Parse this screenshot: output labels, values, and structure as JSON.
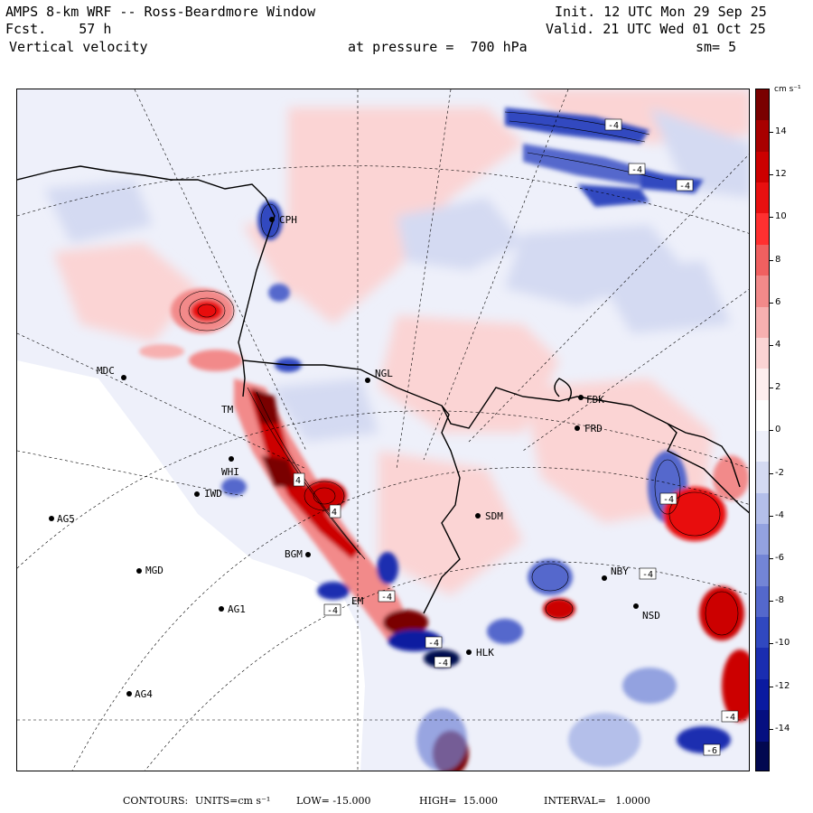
{
  "header": {
    "line1_left": "AMPS 8-km WRF -- Ross-Beardmore Window",
    "line2_left": "Fcst.    57 h",
    "line3_left": "Vertical velocity",
    "line1_right": "Init. 12 UTC Mon 29 Sep 25",
    "line2_right": "Valid. 21 UTC Wed 01 Oct 25",
    "pressure": "at pressure =  700 hPa",
    "smoothing": "sm= 5"
  },
  "colorbar": {
    "unit": "cm s⁻¹",
    "ticks": [
      "14",
      "12",
      "10",
      "8",
      "6",
      "4",
      "2",
      "0",
      "-2",
      "-4",
      "-6",
      "-8",
      "-10",
      "-12",
      "-14"
    ],
    "palette": [
      "#7a0000",
      "#a80000",
      "#cc0000",
      "#e81010",
      "#ff3030",
      "#f06060",
      "#f28a8a",
      "#f7b0b0",
      "#fbd4d4",
      "#fdeeee",
      "#ffffff",
      "#eef0fa",
      "#d4daf2",
      "#b4bfea",
      "#93a2e0",
      "#7385d6",
      "#5468cc",
      "#3048c0",
      "#1a2db0",
      "#0a1aa0",
      "#050f80",
      "#020850"
    ]
  },
  "stations": [
    {
      "id": "CPH"
    },
    {
      "id": "MDC"
    },
    {
      "id": "NGL"
    },
    {
      "id": "FDK"
    },
    {
      "id": "FRD"
    },
    {
      "id": "IWD"
    },
    {
      "id": "WHI"
    },
    {
      "id": "AG5"
    },
    {
      "id": "SDM"
    },
    {
      "id": "MGD"
    },
    {
      "id": "BGM"
    },
    {
      "id": "NBY"
    },
    {
      "id": "AG1"
    },
    {
      "id": "NSD"
    },
    {
      "id": "HLK"
    },
    {
      "id": "AG4"
    },
    {
      "id": "TM"
    },
    {
      "id": "EM"
    }
  ],
  "contour_labels": [
    "-4",
    "-4",
    "-4",
    "4",
    "4",
    "-4",
    "-4",
    "-4",
    "-4",
    "-4",
    "-4",
    "-4",
    "-6"
  ],
  "footer": {
    "label": "CONTOURS:",
    "units": "UNITS=cm s⁻¹",
    "low": "LOW= -15.000",
    "high": "HIGH=  15.000",
    "interval": "INTERVAL=   1.0000"
  }
}
